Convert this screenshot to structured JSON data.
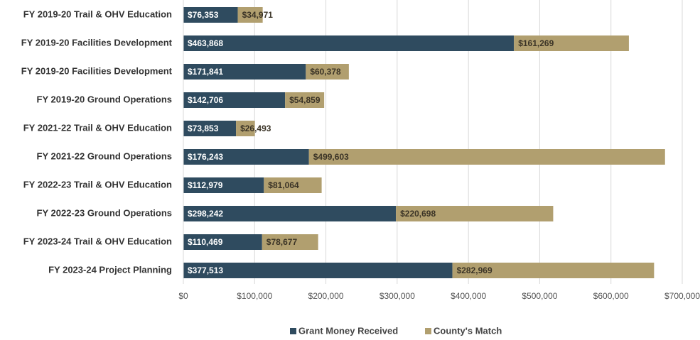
{
  "chart_data": {
    "type": "stacked-bar-horizontal",
    "categories": [
      "FY 2019-20 Trail & OHV Education",
      "FY 2019-20 Facilities Development",
      "FY 2019-20 Facilities Development",
      "FY 2019-20 Ground Operations",
      "FY 2021-22 Trail & OHV Education",
      "FY 2021-22 Ground Operations",
      "FY 2022-23 Trail & OHV Education",
      "FY 2022-23 Ground Operations",
      "FY 2023-24 Trail & OHV Education",
      "FY 2023-24 Project Planning"
    ],
    "series": [
      {
        "name": "Grant Money Received",
        "color": "#2f4b5f",
        "values": [
          76353,
          463868,
          171841,
          142706,
          73853,
          176243,
          112979,
          298242,
          110469,
          377513
        ],
        "value_labels": [
          "$76,353",
          "$463,868",
          "$171,841",
          "$142,706",
          "$73,853",
          "$176,243",
          "$112,979",
          "$298,242",
          "$110,469",
          "$377,513"
        ]
      },
      {
        "name": "County's Match",
        "color": "#b19f6f",
        "values": [
          34971,
          161269,
          60378,
          54859,
          26493,
          499603,
          81064,
          220698,
          78677,
          282969
        ],
        "value_labels": [
          "$34,971",
          "$161,269",
          "$60,378",
          "$54,859",
          "$26,493",
          "$499,603",
          "$81,064",
          "$220,698",
          "$78,677",
          "$282,969"
        ]
      }
    ],
    "xlim": [
      0,
      700000
    ],
    "xticks": [
      {
        "value": 0,
        "label": "$0"
      },
      {
        "value": 100000,
        "label": "$100,000"
      },
      {
        "value": 200000,
        "label": "$200,000"
      },
      {
        "value": 300000,
        "label": "$300,000"
      },
      {
        "value": 400000,
        "label": "$400,000"
      },
      {
        "value": 500000,
        "label": "$500,000"
      },
      {
        "value": 600000,
        "label": "$600,000"
      },
      {
        "value": 700000,
        "label": "$700,000"
      }
    ],
    "grid": true,
    "legend": "bottom"
  }
}
